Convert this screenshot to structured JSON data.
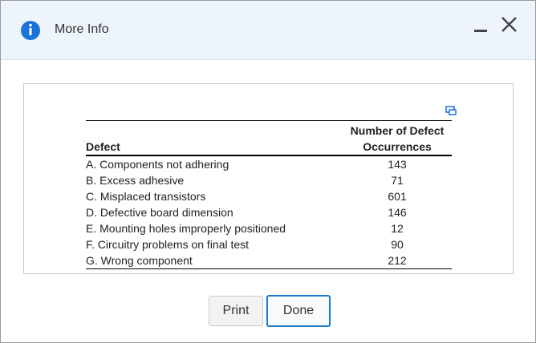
{
  "dialog": {
    "title": "More Info",
    "table": {
      "headers": [
        "Defect",
        "Number of Defect Occurrences"
      ],
      "rows": [
        [
          "A. Components not adhering",
          143
        ],
        [
          "B. Excess adhesive",
          71
        ],
        [
          "C. Misplaced transistors",
          601
        ],
        [
          "D. Defective board dimension",
          146
        ],
        [
          "E. Mounting holes improperly positioned",
          12
        ],
        [
          "F. Circuitry problems on final test",
          90
        ],
        [
          "G. Wrong component",
          212
        ]
      ]
    },
    "buttons": [
      "Print",
      "Done"
    ]
  }
}
